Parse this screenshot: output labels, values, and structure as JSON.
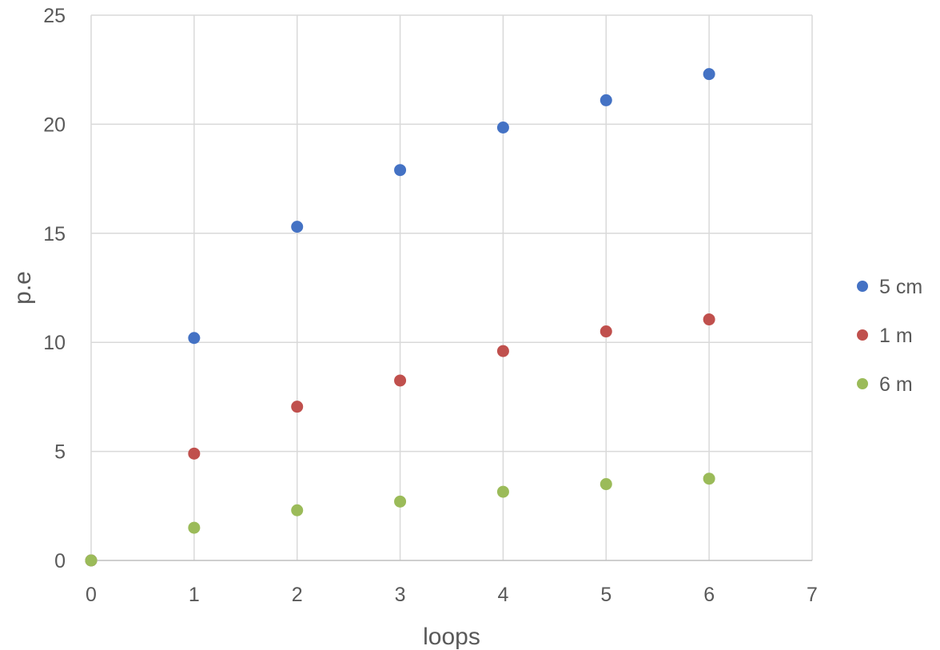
{
  "chart_data": {
    "type": "scatter",
    "xlabel": "loops",
    "ylabel": "p.e",
    "xlim": [
      0,
      7
    ],
    "ylim": [
      0,
      25
    ],
    "x_ticks": [
      0,
      1,
      2,
      3,
      4,
      5,
      6,
      7
    ],
    "y_ticks": [
      0,
      5,
      10,
      15,
      20,
      25
    ],
    "grid": true,
    "legend_position": "right",
    "series": [
      {
        "name": "5 cm",
        "color": "#4472c4",
        "x": [
          0,
          1,
          2,
          3,
          4,
          5,
          6
        ],
        "y": [
          0,
          10.2,
          15.3,
          17.9,
          19.85,
          21.1,
          22.3
        ]
      },
      {
        "name": "1 m",
        "color": "#c0504d",
        "x": [
          0,
          1,
          2,
          3,
          4,
          5,
          6
        ],
        "y": [
          0,
          4.9,
          7.05,
          8.25,
          9.6,
          10.5,
          11.05
        ]
      },
      {
        "name": "6 m",
        "color": "#9bbb59",
        "x": [
          0,
          1,
          2,
          3,
          4,
          5,
          6
        ],
        "y": [
          0,
          1.5,
          2.3,
          2.7,
          3.15,
          3.5,
          3.75
        ]
      }
    ]
  }
}
